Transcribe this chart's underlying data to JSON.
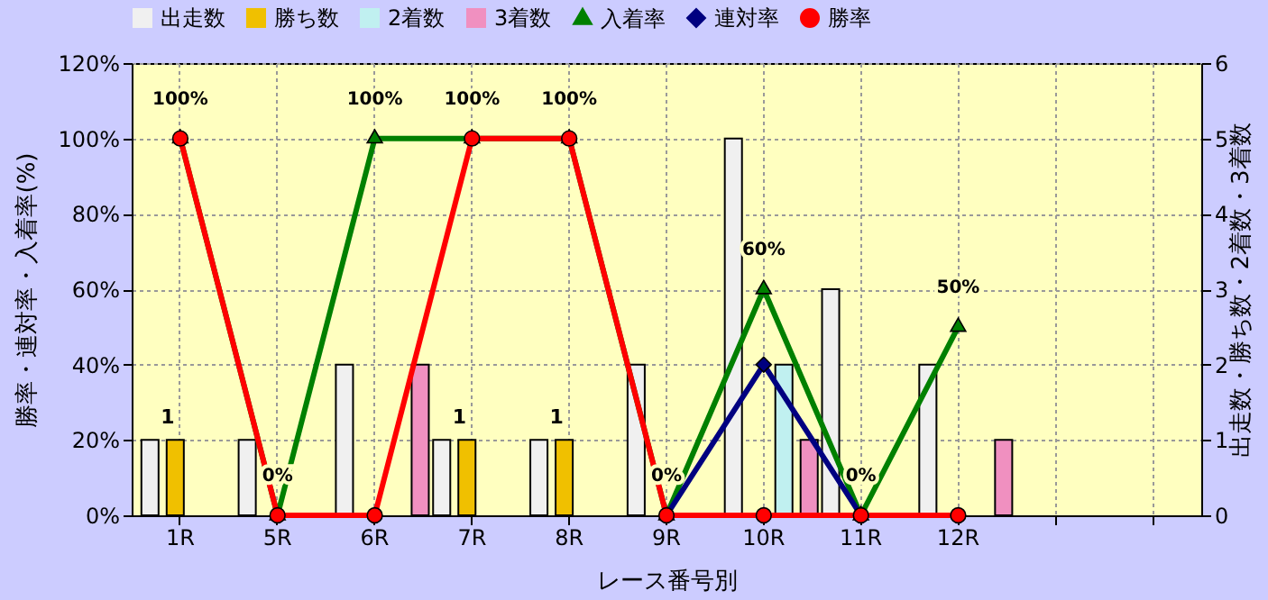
{
  "chart_data": {
    "type": "bar",
    "xlabel": "レース番号別",
    "ylabel": "勝率・連対率・入着率(%)",
    "y2label": "出走数・勝ち数・2着数・3着数",
    "categories": [
      "1R",
      "5R",
      "6R",
      "7R",
      "8R",
      "9R",
      "10R",
      "11R",
      "12R",
      null,
      null
    ],
    "series": [
      {
        "name": "出走数",
        "type": "bar",
        "axis": "y2",
        "color": "#f0f0f0",
        "values": [
          1,
          1,
          2,
          1,
          1,
          2,
          5,
          3,
          2,
          null,
          null
        ]
      },
      {
        "name": "勝ち数",
        "type": "bar",
        "axis": "y2",
        "color": "#f0c000",
        "values": [
          1,
          0,
          0,
          1,
          1,
          0,
          0,
          0,
          0,
          null,
          null
        ],
        "value_labels": [
          "1",
          null,
          null,
          "1",
          "1",
          null,
          null,
          null,
          null,
          null,
          null
        ]
      },
      {
        "name": "2着数",
        "type": "bar",
        "axis": "y2",
        "color": "#c0f0f0",
        "values": [
          0,
          0,
          0,
          0,
          0,
          0,
          2,
          0,
          0,
          null,
          null
        ]
      },
      {
        "name": "3着数",
        "type": "bar",
        "axis": "y2",
        "color": "#f090c0",
        "values": [
          0,
          0,
          2,
          0,
          0,
          0,
          1,
          0,
          1,
          null,
          null
        ]
      },
      {
        "name": "入着率",
        "type": "line",
        "axis": "y",
        "color": "#008000",
        "marker": "triangle",
        "values": [
          100,
          0,
          100,
          100,
          100,
          0,
          60,
          0,
          50,
          null,
          null
        ],
        "value_labels": [
          "100%",
          "0%",
          "100%",
          "100%",
          "100%",
          "0%",
          "60%",
          "0%",
          "50%",
          null,
          null
        ]
      },
      {
        "name": "連対率",
        "type": "line",
        "axis": "y",
        "color": "#000080",
        "marker": "diamond",
        "values": [
          null,
          null,
          null,
          null,
          null,
          0,
          40,
          0,
          null,
          null,
          null
        ]
      },
      {
        "name": "勝率",
        "type": "line",
        "axis": "y",
        "color": "#ff0000",
        "marker": "circle",
        "values": [
          100,
          0,
          0,
          100,
          100,
          0,
          0,
          0,
          0,
          null,
          null
        ]
      }
    ],
    "ylim": [
      0,
      120
    ],
    "yticks": [
      {
        "value": 0,
        "label": "0%"
      },
      {
        "value": 20,
        "label": "20%"
      },
      {
        "value": 40,
        "label": "40%"
      },
      {
        "value": 60,
        "label": "60%"
      },
      {
        "value": 80,
        "label": "80%"
      },
      {
        "value": 100,
        "label": "100%"
      },
      {
        "value": 120,
        "label": "120%"
      }
    ],
    "y2lim": [
      0,
      6
    ],
    "y2ticks": [
      0,
      1,
      2,
      3,
      4,
      5,
      6
    ],
    "grid": true,
    "legend": "top"
  }
}
